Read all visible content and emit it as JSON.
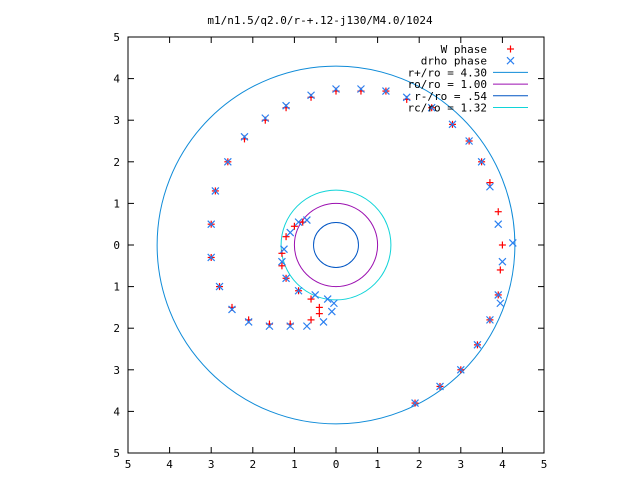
{
  "chart_data": {
    "type": "scatter",
    "title": "m1/n1.5/q2.0/r-+.12-j130/M4.0/1024",
    "xlabel": "",
    "ylabel": "",
    "xlim": [
      -5,
      5
    ],
    "ylim": [
      -5,
      5
    ],
    "x_tick_labels": [
      "5",
      "4",
      "3",
      "2",
      "1",
      "0",
      "1",
      "2",
      "3",
      "4",
      "5"
    ],
    "y_tick_labels": [
      "5",
      "4",
      "3",
      "2",
      "1",
      "0",
      "1",
      "2",
      "3",
      "4",
      "5"
    ],
    "grid": false,
    "legend_position": "top-right",
    "circles": [
      {
        "name": "r+/ro = 4.30",
        "radius": 4.3,
        "color": "#0f8bd8"
      },
      {
        "name": "ro/ro = 1.00",
        "radius": 1.0,
        "color": "#9b0fb0"
      },
      {
        "name": "r-/ro = .54",
        "radius": 0.54,
        "color": "#0055c4"
      },
      {
        "name": "rc/ro = 1.32",
        "radius": 1.32,
        "color": "#10d4d8"
      }
    ],
    "series": [
      {
        "name": "W phase",
        "marker": "plus",
        "color": "#ff0000",
        "x": [
          1.9,
          2.5,
          3.0,
          3.4,
          3.7,
          3.9,
          3.95,
          4.0,
          3.9,
          3.7,
          3.5,
          3.2,
          2.8,
          2.3,
          1.7,
          1.2,
          0.6,
          0.0,
          -0.6,
          -1.2,
          -1.7,
          -2.2,
          -2.6,
          -2.9,
          -3.0,
          -3.0,
          -2.8,
          -2.5,
          -2.1,
          -1.6,
          -1.1,
          -0.6,
          -0.4,
          -0.4,
          -0.6,
          -0.9,
          -1.2,
          -1.3,
          -1.3,
          -1.2,
          -1.0,
          -0.8
        ],
        "y": [
          -3.8,
          -3.4,
          -3.0,
          -2.4,
          -1.8,
          -1.2,
          -0.6,
          0.0,
          0.8,
          1.5,
          2.0,
          2.5,
          2.9,
          3.3,
          3.5,
          3.7,
          3.7,
          3.7,
          3.55,
          3.3,
          3.0,
          2.55,
          2.0,
          1.3,
          0.5,
          -0.3,
          -1.0,
          -1.5,
          -1.8,
          -1.9,
          -1.9,
          -1.8,
          -1.65,
          -1.5,
          -1.3,
          -1.1,
          -0.8,
          -0.5,
          -0.2,
          0.2,
          0.45,
          0.55
        ]
      },
      {
        "name": "drho phase",
        "marker": "x",
        "color": "#2a7ff0",
        "x": [
          1.9,
          2.5,
          3.0,
          3.4,
          3.7,
          3.9,
          4.0,
          3.9,
          3.7,
          3.5,
          3.2,
          2.8,
          2.3,
          1.7,
          1.2,
          0.6,
          0.0,
          -0.6,
          -1.2,
          -1.7,
          -2.2,
          -2.6,
          -2.9,
          -3.0,
          -3.0,
          -2.8,
          -2.5,
          -2.1,
          -1.6,
          -1.1,
          -0.7,
          -0.3,
          -0.1,
          -0.05,
          -0.2,
          -0.5,
          -0.9,
          -1.2,
          -1.3,
          -1.25,
          -1.1,
          -0.9,
          -0.7,
          4.25,
          3.95
        ],
        "y": [
          -3.8,
          -3.4,
          -3.0,
          -2.4,
          -1.8,
          -1.2,
          -0.4,
          0.5,
          1.4,
          2.0,
          2.5,
          2.9,
          3.3,
          3.55,
          3.7,
          3.75,
          3.75,
          3.6,
          3.35,
          3.05,
          2.6,
          2.0,
          1.3,
          0.5,
          -0.3,
          -1.0,
          -1.55,
          -1.85,
          -1.95,
          -1.95,
          -1.95,
          -1.85,
          -1.6,
          -1.4,
          -1.3,
          -1.2,
          -1.1,
          -0.8,
          -0.4,
          -0.1,
          0.3,
          0.55,
          0.6,
          0.05,
          -1.4
        ]
      }
    ]
  }
}
